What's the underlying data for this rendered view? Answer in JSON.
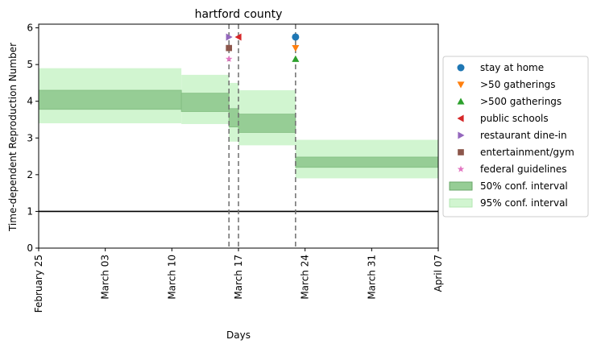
{
  "chart_data": {
    "type": "area",
    "title": "hartford county",
    "xlabel": "Days",
    "ylabel": "Time-dependent Reproduction Number",
    "x_range": [
      "2020-02-25",
      "2020-04-07"
    ],
    "ylim": [
      0,
      6.1
    ],
    "x_ticks": [
      {
        "date": "2020-02-25",
        "label": "February 25"
      },
      {
        "date": "2020-03-03",
        "label": "March 03"
      },
      {
        "date": "2020-03-10",
        "label": "March 10"
      },
      {
        "date": "2020-03-17",
        "label": "March 17"
      },
      {
        "date": "2020-03-24",
        "label": "March 24"
      },
      {
        "date": "2020-03-31",
        "label": "March 31"
      },
      {
        "date": "2020-04-07",
        "label": "April 07"
      }
    ],
    "y_ticks": [
      0,
      1,
      2,
      3,
      4,
      5,
      6
    ],
    "grid": false,
    "legend_placement": "center-right outside",
    "reference_line": {
      "y": 1
    },
    "intervals": [
      {
        "start": "2020-02-25",
        "end": "2020-03-11",
        "ci50": [
          3.78,
          4.3
        ],
        "ci95": [
          3.4,
          4.9
        ]
      },
      {
        "start": "2020-03-11",
        "end": "2020-03-16",
        "ci50": [
          3.72,
          4.22
        ],
        "ci95": [
          3.38,
          4.72
        ]
      },
      {
        "start": "2020-03-16",
        "end": "2020-03-17",
        "ci50": [
          3.3,
          3.8
        ],
        "ci95": [
          2.9,
          4.5
        ]
      },
      {
        "start": "2020-03-17",
        "end": "2020-03-23",
        "ci50": [
          3.15,
          3.65
        ],
        "ci95": [
          2.8,
          4.3
        ]
      },
      {
        "start": "2020-03-23",
        "end": "2020-04-07",
        "ci50": [
          2.2,
          2.48
        ],
        "ci95": [
          1.9,
          2.95
        ]
      }
    ],
    "interventions": [
      {
        "name": "stay at home",
        "date": "2020-03-23",
        "y": 5.75,
        "marker": "circle",
        "color": "#1f77b4"
      },
      {
        "name": ">50 gatherings",
        "date": "2020-03-23",
        "y": 5.45,
        "marker": "triangle-down",
        "color": "#ff7f0e"
      },
      {
        "name": ">500 gatherings",
        "date": "2020-03-23",
        "y": 5.15,
        "marker": "triangle-up",
        "color": "#2ca02c"
      },
      {
        "name": "public schools",
        "date": "2020-03-17",
        "y": 5.75,
        "marker": "triangle-left",
        "color": "#d62728"
      },
      {
        "name": "restaurant dine-in",
        "date": "2020-03-16",
        "y": 5.75,
        "marker": "triangle-right",
        "color": "#9467bd"
      },
      {
        "name": "entertainment/gym",
        "date": "2020-03-16",
        "y": 5.45,
        "marker": "square",
        "color": "#8c564b"
      },
      {
        "name": "federal guidelines",
        "date": "2020-03-16",
        "y": 5.15,
        "marker": "star",
        "color": "#e377c2"
      }
    ],
    "vlines": [
      "2020-03-16",
      "2020-03-17",
      "2020-03-23"
    ],
    "legend": [
      {
        "label": "stay at home",
        "kind": "marker",
        "marker": "circle",
        "color": "#1f77b4"
      },
      {
        "label": ">50 gatherings",
        "kind": "marker",
        "marker": "triangle-down",
        "color": "#ff7f0e"
      },
      {
        "label": ">500 gatherings",
        "kind": "marker",
        "marker": "triangle-up",
        "color": "#2ca02c"
      },
      {
        "label": "public schools",
        "kind": "marker",
        "marker": "triangle-left",
        "color": "#d62728"
      },
      {
        "label": "restaurant dine-in",
        "kind": "marker",
        "marker": "triangle-right",
        "color": "#9467bd"
      },
      {
        "label": "entertainment/gym",
        "kind": "marker",
        "marker": "square",
        "color": "#8c564b"
      },
      {
        "label": "federal guidelines",
        "kind": "marker",
        "marker": "star",
        "color": "#e377c2"
      },
      {
        "label": "50% conf. interval",
        "kind": "patch",
        "color": "#96cd95"
      },
      {
        "label": "95% conf. interval",
        "kind": "patch",
        "color": "#d1f5d0"
      }
    ],
    "colors": {
      "ci50": "#96cd95",
      "ci95": "#d1f5d0",
      "vline": "#6e6e6e",
      "reference": "#000000"
    }
  }
}
